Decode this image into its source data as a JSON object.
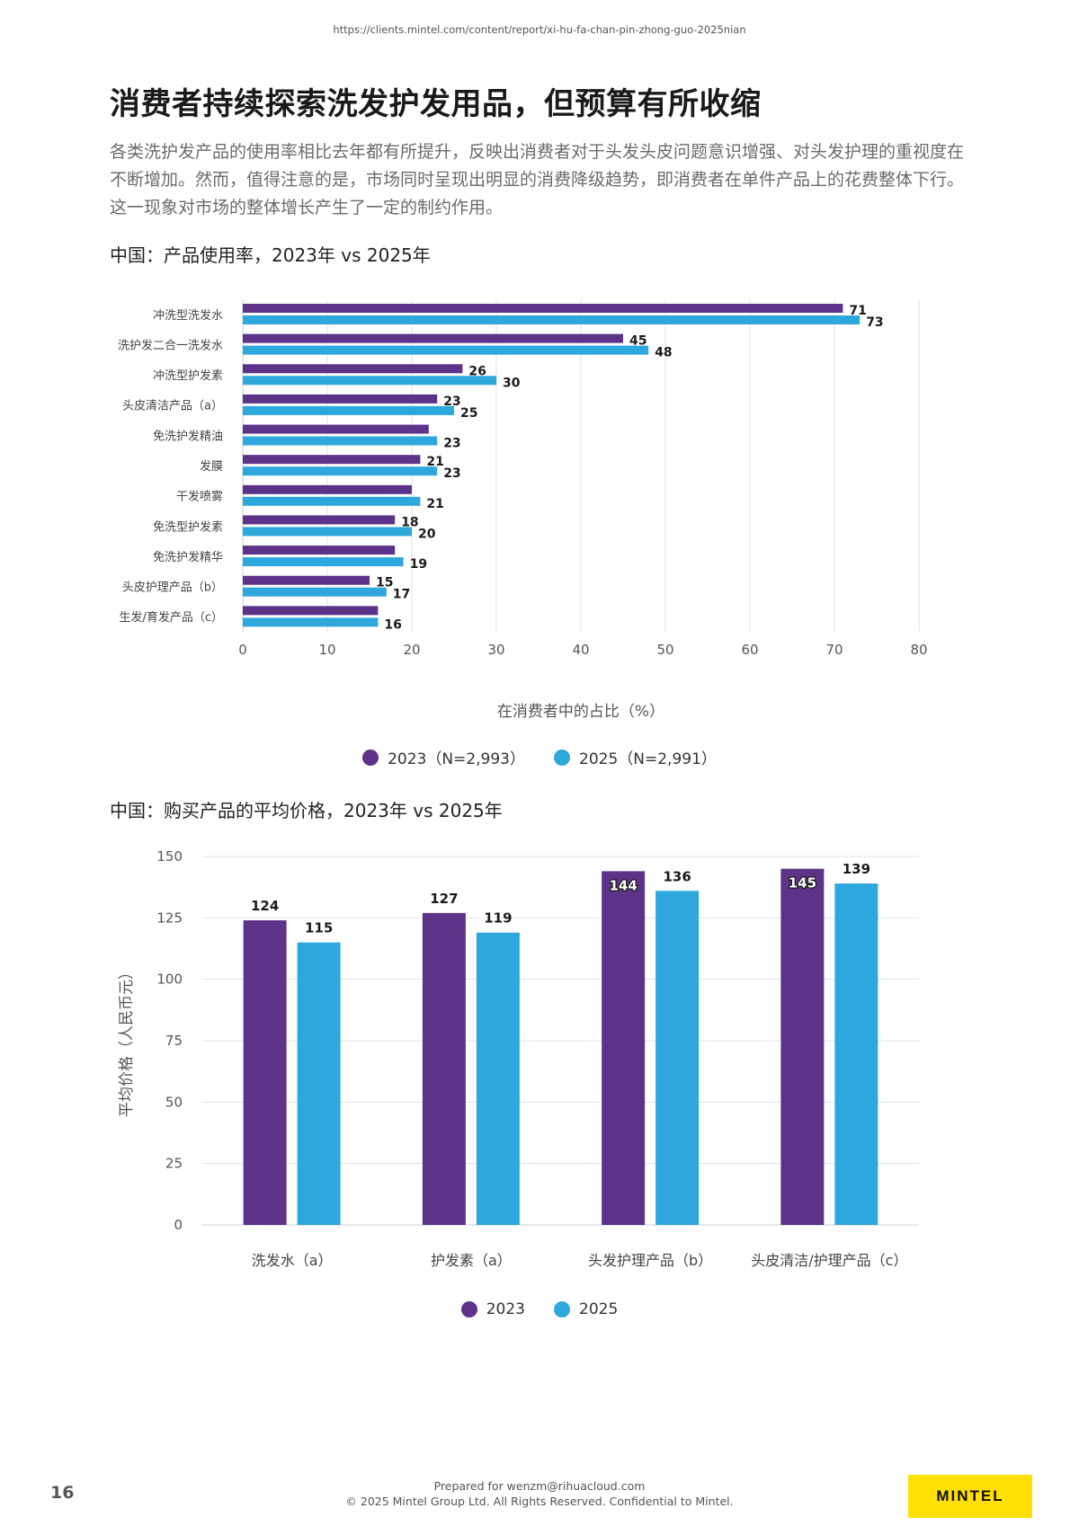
{
  "url": "https://clients.mintel.com/content/report/xi-hu-fa-chan-pin-zhong-guo-2025nian",
  "title": "消费者持续探索洗发护发用品，但预算有所收缩",
  "description": "各类洗护发产品的使用率相比去年都有所提升，反映出消费者对于头发头皮问题意识增强、对头发护理的重视度在不断增加。然而，值得注意的是，市场同时呈现出明显的消费降级趋势，即消费者在单件产品上的花费整体下行。这一现象对市场的整体增长产生了一定的制约作用。",
  "footer": {
    "page_number": "16",
    "prepared_for": "Prepared for wenzm@rihuacloud.com",
    "copyright": "© 2025 Mintel Group Ltd. All Rights Reserved. Confidential to Mintel.",
    "logo_text": "MINTEL"
  },
  "colors": {
    "series_2023": "#5c3388",
    "series_2025": "#2ea8dc"
  },
  "chart_data": [
    {
      "type": "bar",
      "orientation": "horizontal",
      "title": "中国：产品使用率，2023年 vs 2025年",
      "xlabel": "在消费者中的占比（%）",
      "ylabel": "",
      "xlim": [
        0,
        80
      ],
      "ticks": [
        "0",
        "10",
        "20",
        "30",
        "40",
        "50",
        "60",
        "70",
        "80"
      ],
      "grid": true,
      "legend_position": "bottom",
      "categories": [
        "冲洗型洗发水",
        "洗护发二合一洗发水",
        "冲洗型护发素",
        "头皮清洁产品（a）",
        "免洗护发精油",
        "发膜",
        "干发喷雾",
        "免洗型护发素",
        "免洗护发精华",
        "头皮护理产品（b）",
        "生发/育发产品（c）"
      ],
      "series": [
        {
          "name": "2023（N=2,993）",
          "values": [
            71,
            45,
            26,
            23,
            22,
            21,
            20,
            18,
            18,
            15,
            16
          ],
          "labels": [
            "71",
            "45",
            "26",
            "23",
            "",
            "21",
            "",
            "18",
            "",
            "15",
            ""
          ]
        },
        {
          "name": "2025（N=2,991）",
          "values": [
            73,
            48,
            30,
            25,
            23,
            23,
            21,
            20,
            19,
            17,
            16
          ],
          "labels": [
            "73",
            "48",
            "30",
            "25",
            "23",
            "23",
            "21",
            "20",
            "19",
            "17",
            "16"
          ]
        }
      ]
    },
    {
      "type": "bar",
      "orientation": "vertical",
      "title": "中国：购买产品的平均价格，2023年 vs 2025年",
      "xlabel": "",
      "ylabel": "平均价格（人民币元）",
      "ylim": [
        0,
        150
      ],
      "ticks": [
        "0",
        "25",
        "50",
        "75",
        "100",
        "125",
        "150"
      ],
      "grid": true,
      "legend_position": "bottom",
      "categories": [
        "洗发水（a）",
        "护发素（a）",
        "头发护理产品（b）",
        "头皮清洁/护理产品（c）"
      ],
      "series": [
        {
          "name": "2023",
          "values": [
            124,
            127,
            144,
            145
          ]
        },
        {
          "name": "2025",
          "values": [
            115,
            119,
            136,
            139
          ]
        }
      ]
    }
  ]
}
